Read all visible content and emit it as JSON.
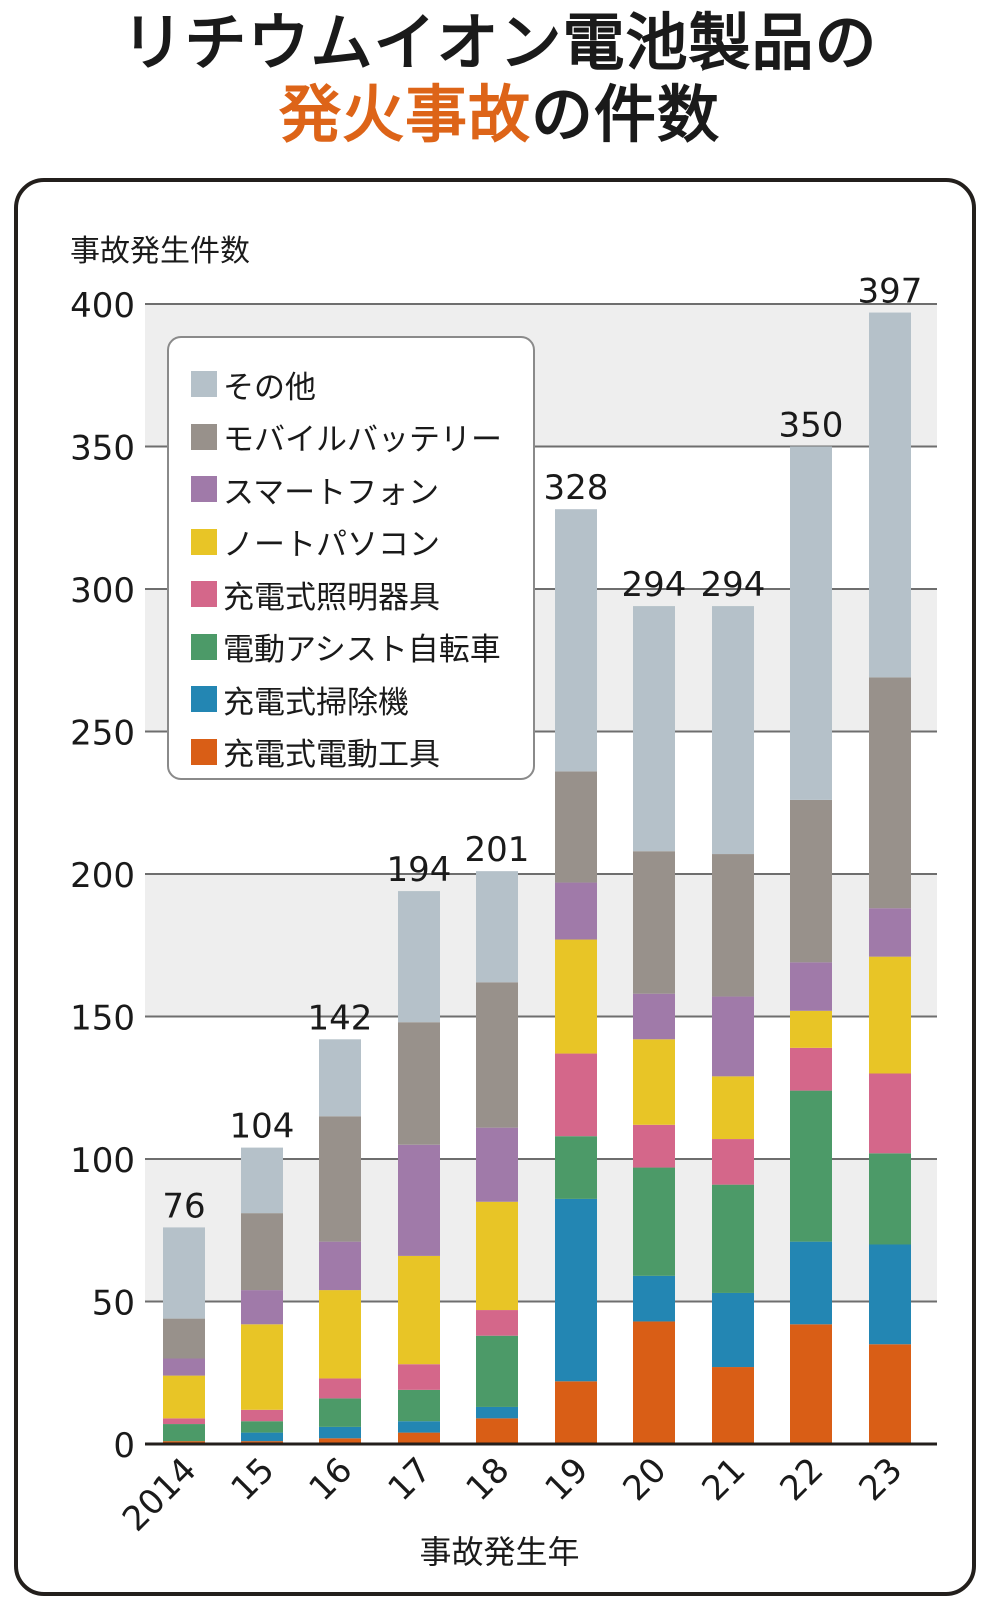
{
  "title": {
    "line1": "リチウムイオン電池製品の",
    "line2_accent": "発火事故",
    "line2_rest": "の件数"
  },
  "colors": {
    "accent": "#dd6418",
    "band": "#eeeeee",
    "gridline": "#6e6e6e"
  },
  "chart_data": {
    "type": "bar",
    "stacked": true,
    "title": "リチウムイオン電池製品の発火事故の件数",
    "xlabel": "事故発生年",
    "ylabel": "事故発生件数",
    "ylim": [
      0,
      400
    ],
    "yticks": [
      0,
      50,
      100,
      150,
      200,
      250,
      300,
      350,
      400
    ],
    "grid": true,
    "legend_position": "top-left",
    "categories": [
      "2014",
      "15",
      "16",
      "17",
      "18",
      "19",
      "20",
      "21",
      "22",
      "23"
    ],
    "totals": [
      76,
      104,
      142,
      194,
      201,
      328,
      294,
      294,
      350,
      397
    ],
    "series": [
      {
        "name": "充電式電動工具",
        "color": "#d95e16",
        "values": [
          1,
          1,
          2,
          4,
          9,
          22,
          43,
          27,
          42,
          35
        ]
      },
      {
        "name": "充電式掃除機",
        "color": "#2386b3",
        "values": [
          0,
          3,
          4,
          4,
          4,
          64,
          16,
          26,
          29,
          35
        ]
      },
      {
        "name": "電動アシスト自転車",
        "color": "#4c9a68",
        "values": [
          6,
          4,
          10,
          11,
          25,
          22,
          38,
          38,
          53,
          32
        ]
      },
      {
        "name": "充電式照明器具",
        "color": "#d4678a",
        "values": [
          2,
          4,
          7,
          9,
          9,
          29,
          15,
          16,
          15,
          28
        ]
      },
      {
        "name": "ノートパソコン",
        "color": "#e8c526",
        "values": [
          15,
          30,
          31,
          38,
          38,
          40,
          30,
          22,
          13,
          41
        ]
      },
      {
        "name": "スマートフォン",
        "color": "#a07aa9",
        "values": [
          6,
          12,
          17,
          39,
          26,
          20,
          16,
          28,
          17,
          17
        ]
      },
      {
        "name": "モバイルバッテリー",
        "color": "#98918b",
        "values": [
          14,
          27,
          44,
          43,
          51,
          39,
          50,
          50,
          57,
          81
        ]
      },
      {
        "name": "その他",
        "color": "#b5c1c9",
        "values": [
          32,
          23,
          27,
          46,
          39,
          92,
          86,
          87,
          124,
          128
        ]
      }
    ]
  },
  "legend": {
    "items": [
      {
        "label": "その他",
        "color": "#b5c1c9"
      },
      {
        "label": "モバイルバッテリー",
        "color": "#98918b"
      },
      {
        "label": "スマートフォン",
        "color": "#a07aa9"
      },
      {
        "label": "ノートパソコン",
        "color": "#e8c526"
      },
      {
        "label": "充電式照明器具",
        "color": "#d4678a"
      },
      {
        "label": "電動アシスト自転車",
        "color": "#4c9a68"
      },
      {
        "label": "充電式掃除機",
        "color": "#2386b3"
      },
      {
        "label": "充電式電動工具",
        "color": "#d95e16"
      }
    ]
  }
}
